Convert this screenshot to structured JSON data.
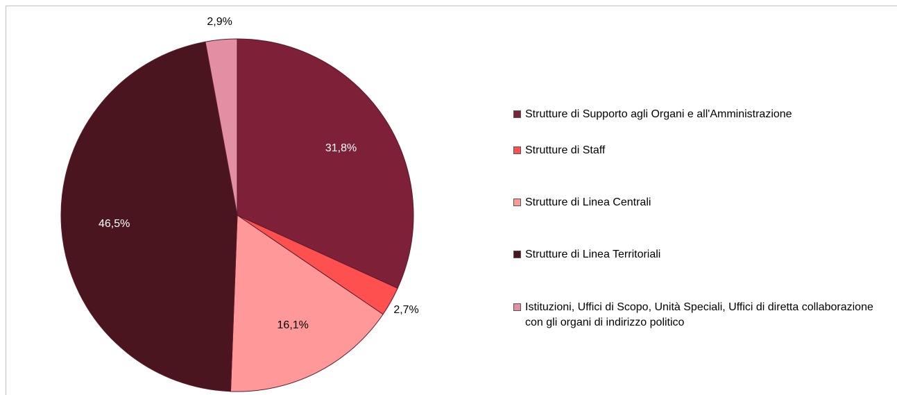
{
  "chart_data": {
    "type": "pie",
    "categories": [
      "Strutture di Supporto agli Organi e all'Amministrazione",
      "Strutture di Staff",
      "Strutture di Linea Centrali",
      "Strutture di Linea Territoriali",
      "Istituzioni, Uffici di Scopo, Unità Speciali, Uffici di diretta collaborazione con gli organi di indirizzo politico"
    ],
    "values": [
      31.8,
      2.7,
      16.1,
      46.5,
      2.9
    ],
    "value_labels": [
      "31,8%",
      "2,7%",
      "16,1%",
      "46,5%",
      "2,9%"
    ],
    "colors": [
      "#7f2039",
      "#ff5050",
      "#ff9999",
      "#4b1520",
      "#e38fa3"
    ],
    "legend": "right"
  }
}
